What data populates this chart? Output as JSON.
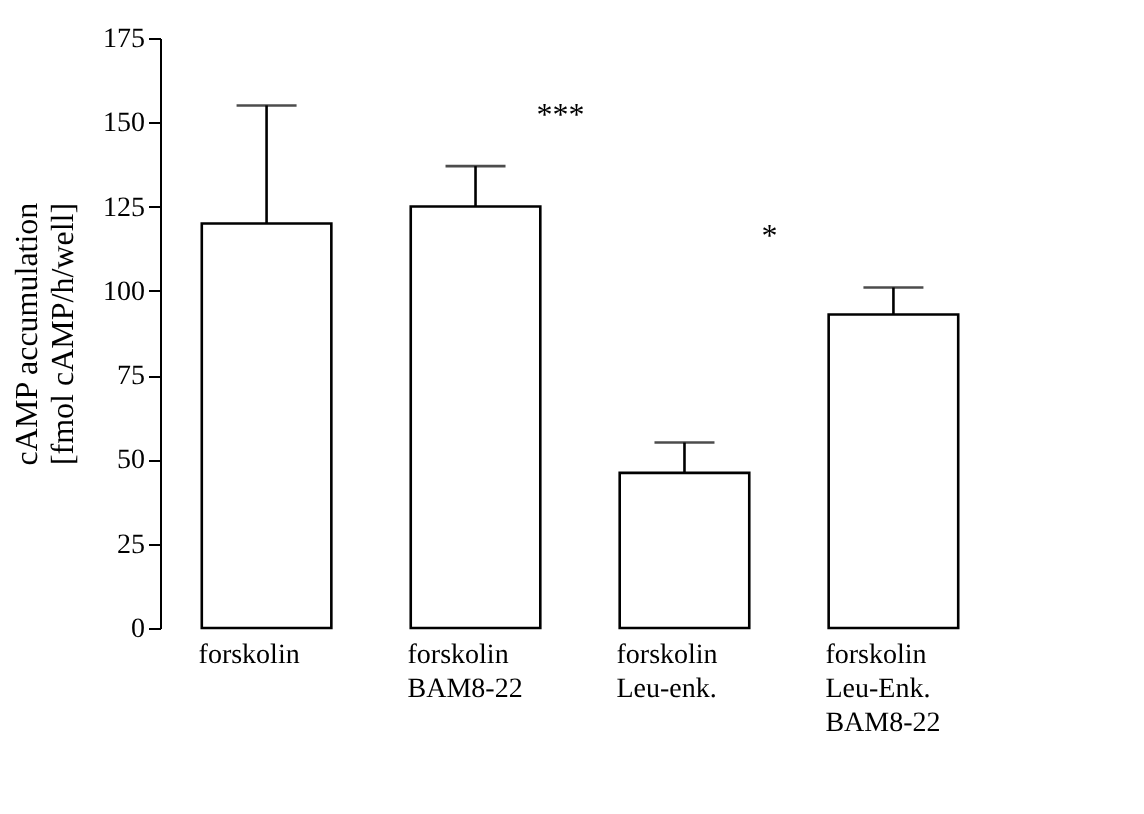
{
  "chart_data": {
    "type": "bar",
    "categories": [
      "forskolin",
      "forskolin\nBAM8-22",
      "forskolin\nLeu-enk.",
      "forskolin\nLeu-Enk.\nBAM8-22"
    ],
    "values": [
      120,
      125,
      46,
      93
    ],
    "errors": [
      [
        120,
        155
      ],
      [
        125,
        137
      ],
      [
        46,
        55
      ],
      [
        93,
        101
      ]
    ],
    "color": "#ffffff",
    "ylabel": "cAMP accumulation\n[fmol cAMP/h/well]",
    "ylim": [
      0,
      175
    ],
    "yticks": [
      0,
      25,
      50,
      75,
      100,
      125,
      150,
      175
    ],
    "grid": false,
    "annotations": [
      "***",
      "*"
    ]
  }
}
